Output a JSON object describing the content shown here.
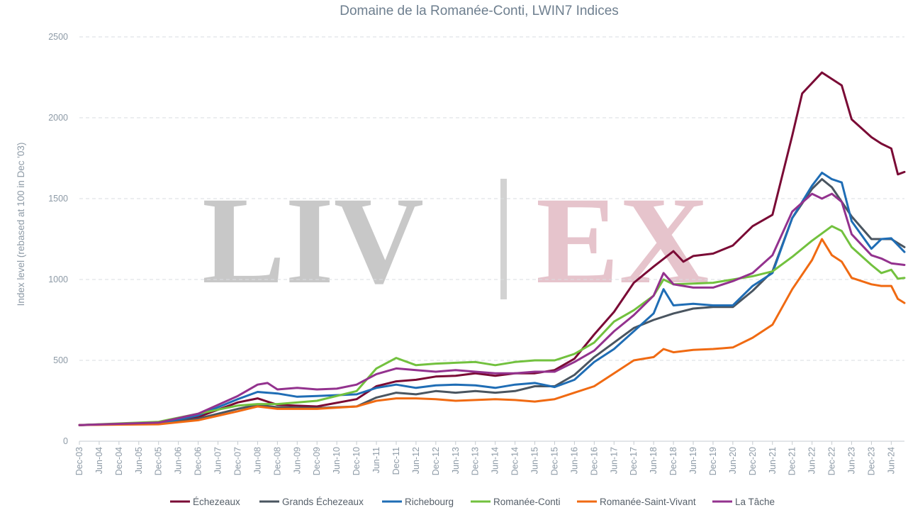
{
  "chart_data": {
    "type": "line",
    "title": "Domaine de la Romanée-Conti, LWIN7 Indices",
    "ylabel": "Index level (rebased at 100 in Dec '03)",
    "xlabel": "",
    "ylim": [
      0,
      2500
    ],
    "yticks": [
      0,
      500,
      1000,
      1500,
      2000,
      2500
    ],
    "x_range": [
      "Dec-03",
      "Oct-24"
    ],
    "x_tick_labels": [
      "Dec-03",
      "Jun-04",
      "Dec-04",
      "Jun-05",
      "Dec-05",
      "Jun-06",
      "Dec-06",
      "Jun-07",
      "Dec-07",
      "Jun-08",
      "Dec-08",
      "Jun-09",
      "Dec-09",
      "Jun-10",
      "Dec-10",
      "Jun-11",
      "Dec-11",
      "Jun-12",
      "Dec-12",
      "Jun-13",
      "Dec-13",
      "Jun-14",
      "Dec-14",
      "Jun-15",
      "Dec-15",
      "Jun-16",
      "Dec-16",
      "Jun-17",
      "Dec-17",
      "Jun-18",
      "Dec-18",
      "Jun-19",
      "Dec-19",
      "Jun-20",
      "Dec-20",
      "Jun-21",
      "Dec-21",
      "Jun-22",
      "Dec-22",
      "Jun-23",
      "Dec-23",
      "Jun-24"
    ],
    "grid": "horizontal dashed",
    "legend_position": "bottom",
    "watermark": {
      "left": "LIV",
      "right": "EX"
    },
    "series": [
      {
        "name": "Échezeaux",
        "color": "#7a0a35",
        "points": [
          [
            "Dec-03",
            100
          ],
          [
            "Dec-05",
            115
          ],
          [
            "Dec-06",
            150
          ],
          [
            "Dec-07",
            240
          ],
          [
            "Jun-08",
            265
          ],
          [
            "Dec-08",
            225
          ],
          [
            "Dec-09",
            215
          ],
          [
            "Dec-10",
            260
          ],
          [
            "Jun-11",
            340
          ],
          [
            "Dec-11",
            370
          ],
          [
            "Jun-12",
            380
          ],
          [
            "Dec-12",
            400
          ],
          [
            "Jun-13",
            405
          ],
          [
            "Dec-13",
            420
          ],
          [
            "Jun-14",
            405
          ],
          [
            "Dec-14",
            420
          ],
          [
            "Jun-15",
            420
          ],
          [
            "Dec-15",
            440
          ],
          [
            "Jun-16",
            510
          ],
          [
            "Dec-16",
            660
          ],
          [
            "Jun-17",
            800
          ],
          [
            "Dec-17",
            980
          ],
          [
            "Jun-18",
            1080
          ],
          [
            "Dec-18",
            1175
          ],
          [
            "Mar-19",
            1110
          ],
          [
            "Jun-19",
            1145
          ],
          [
            "Dec-19",
            1160
          ],
          [
            "Jun-20",
            1210
          ],
          [
            "Dec-20",
            1330
          ],
          [
            "Jun-21",
            1400
          ],
          [
            "Dec-21",
            1890
          ],
          [
            "Mar-22",
            2150
          ],
          [
            "Sep-22",
            2280
          ],
          [
            "Mar-23",
            2200
          ],
          [
            "Jun-23",
            1990
          ],
          [
            "Dec-23",
            1880
          ],
          [
            "Mar-24",
            1840
          ],
          [
            "Jun-24",
            1810
          ],
          [
            "Aug-24",
            1650
          ],
          [
            "Oct-24",
            1665
          ]
        ]
      },
      {
        "name": "Grands Échezeaux",
        "color": "#4a5560",
        "points": [
          [
            "Dec-03",
            100
          ],
          [
            "Dec-05",
            110
          ],
          [
            "Dec-06",
            140
          ],
          [
            "Dec-07",
            200
          ],
          [
            "Jun-08",
            225
          ],
          [
            "Dec-08",
            210
          ],
          [
            "Dec-09",
            205
          ],
          [
            "Dec-10",
            215
          ],
          [
            "Jun-11",
            270
          ],
          [
            "Dec-11",
            300
          ],
          [
            "Jun-12",
            290
          ],
          [
            "Dec-12",
            310
          ],
          [
            "Jun-13",
            300
          ],
          [
            "Dec-13",
            310
          ],
          [
            "Jun-14",
            300
          ],
          [
            "Dec-14",
            310
          ],
          [
            "Jun-15",
            340
          ],
          [
            "Dec-15",
            340
          ],
          [
            "Jun-16",
            410
          ],
          [
            "Dec-16",
            520
          ],
          [
            "Jun-17",
            610
          ],
          [
            "Dec-17",
            700
          ],
          [
            "Jun-18",
            750
          ],
          [
            "Dec-18",
            790
          ],
          [
            "Jun-19",
            820
          ],
          [
            "Dec-19",
            830
          ],
          [
            "Jun-20",
            830
          ],
          [
            "Dec-20",
            930
          ],
          [
            "Jun-21",
            1050
          ],
          [
            "Dec-21",
            1380
          ],
          [
            "Jun-22",
            1560
          ],
          [
            "Sep-22",
            1620
          ],
          [
            "Dec-22",
            1570
          ],
          [
            "Jun-23",
            1390
          ],
          [
            "Dec-23",
            1250
          ],
          [
            "Jun-24",
            1250
          ],
          [
            "Oct-24",
            1200
          ]
        ]
      },
      {
        "name": "Richebourg",
        "color": "#1f6db5",
        "points": [
          [
            "Dec-03",
            100
          ],
          [
            "Dec-05",
            110
          ],
          [
            "Dec-06",
            160
          ],
          [
            "Dec-07",
            260
          ],
          [
            "Jun-08",
            305
          ],
          [
            "Dec-08",
            295
          ],
          [
            "Jun-09",
            275
          ],
          [
            "Dec-09",
            280
          ],
          [
            "Dec-10",
            290
          ],
          [
            "Jun-11",
            330
          ],
          [
            "Dec-11",
            350
          ],
          [
            "Jun-12",
            330
          ],
          [
            "Dec-12",
            345
          ],
          [
            "Jun-13",
            350
          ],
          [
            "Dec-13",
            345
          ],
          [
            "Jun-14",
            330
          ],
          [
            "Dec-14",
            350
          ],
          [
            "Jun-15",
            360
          ],
          [
            "Dec-15",
            335
          ],
          [
            "Jun-16",
            380
          ],
          [
            "Dec-16",
            490
          ],
          [
            "Jun-17",
            570
          ],
          [
            "Dec-17",
            680
          ],
          [
            "Jun-18",
            790
          ],
          [
            "Sep-18",
            940
          ],
          [
            "Dec-18",
            840
          ],
          [
            "Jun-19",
            850
          ],
          [
            "Dec-19",
            840
          ],
          [
            "Jun-20",
            840
          ],
          [
            "Dec-20",
            960
          ],
          [
            "Jun-21",
            1040
          ],
          [
            "Dec-21",
            1380
          ],
          [
            "Jun-22",
            1580
          ],
          [
            "Sep-22",
            1660
          ],
          [
            "Dec-22",
            1620
          ],
          [
            "Mar-23",
            1600
          ],
          [
            "Jun-23",
            1360
          ],
          [
            "Dec-23",
            1190
          ],
          [
            "Mar-24",
            1250
          ],
          [
            "Jun-24",
            1255
          ],
          [
            "Oct-24",
            1170
          ]
        ]
      },
      {
        "name": "Romanée-Conti",
        "color": "#72c13e",
        "points": [
          [
            "Dec-03",
            100
          ],
          [
            "Dec-05",
            120
          ],
          [
            "Dec-06",
            170
          ],
          [
            "Dec-07",
            220
          ],
          [
            "Jun-08",
            230
          ],
          [
            "Dec-08",
            230
          ],
          [
            "Dec-09",
            250
          ],
          [
            "Dec-10",
            310
          ],
          [
            "Jun-11",
            450
          ],
          [
            "Dec-11",
            515
          ],
          [
            "Jun-12",
            470
          ],
          [
            "Dec-12",
            480
          ],
          [
            "Jun-13",
            485
          ],
          [
            "Dec-13",
            490
          ],
          [
            "Jun-14",
            470
          ],
          [
            "Dec-14",
            490
          ],
          [
            "Jun-15",
            500
          ],
          [
            "Dec-15",
            500
          ],
          [
            "Jun-16",
            540
          ],
          [
            "Dec-16",
            610
          ],
          [
            "Jun-17",
            740
          ],
          [
            "Dec-17",
            810
          ],
          [
            "Jun-18",
            900
          ],
          [
            "Sep-18",
            1000
          ],
          [
            "Dec-18",
            970
          ],
          [
            "Jun-19",
            975
          ],
          [
            "Dec-19",
            980
          ],
          [
            "Jun-20",
            1000
          ],
          [
            "Dec-20",
            1020
          ],
          [
            "Jun-21",
            1050
          ],
          [
            "Dec-21",
            1140
          ],
          [
            "Jun-22",
            1240
          ],
          [
            "Dec-22",
            1330
          ],
          [
            "Mar-23",
            1300
          ],
          [
            "Jun-23",
            1200
          ],
          [
            "Dec-23",
            1090
          ],
          [
            "Mar-24",
            1040
          ],
          [
            "Jun-24",
            1060
          ],
          [
            "Aug-24",
            1005
          ],
          [
            "Oct-24",
            1010
          ]
        ]
      },
      {
        "name": "Romanée-Saint-Vivant",
        "color": "#f06a12",
        "points": [
          [
            "Dec-03",
            100
          ],
          [
            "Dec-05",
            105
          ],
          [
            "Dec-06",
            130
          ],
          [
            "Dec-07",
            185
          ],
          [
            "Jun-08",
            215
          ],
          [
            "Dec-08",
            200
          ],
          [
            "Dec-09",
            200
          ],
          [
            "Dec-10",
            215
          ],
          [
            "Jun-11",
            250
          ],
          [
            "Dec-11",
            265
          ],
          [
            "Jun-12",
            265
          ],
          [
            "Dec-12",
            260
          ],
          [
            "Jun-13",
            250
          ],
          [
            "Dec-13",
            255
          ],
          [
            "Jun-14",
            260
          ],
          [
            "Dec-14",
            255
          ],
          [
            "Jun-15",
            245
          ],
          [
            "Dec-15",
            260
          ],
          [
            "Jun-16",
            300
          ],
          [
            "Dec-16",
            340
          ],
          [
            "Jun-17",
            420
          ],
          [
            "Dec-17",
            500
          ],
          [
            "Jun-18",
            520
          ],
          [
            "Sep-18",
            570
          ],
          [
            "Dec-18",
            550
          ],
          [
            "Jun-19",
            565
          ],
          [
            "Dec-19",
            570
          ],
          [
            "Jun-20",
            580
          ],
          [
            "Dec-20",
            640
          ],
          [
            "Jun-21",
            720
          ],
          [
            "Dec-21",
            940
          ],
          [
            "Jun-22",
            1120
          ],
          [
            "Sep-22",
            1250
          ],
          [
            "Dec-22",
            1150
          ],
          [
            "Mar-23",
            1110
          ],
          [
            "Jun-23",
            1010
          ],
          [
            "Dec-23",
            970
          ],
          [
            "Mar-24",
            960
          ],
          [
            "Jun-24",
            960
          ],
          [
            "Aug-24",
            880
          ],
          [
            "Oct-24",
            855
          ]
        ]
      },
      {
        "name": "La Tâche",
        "color": "#93328e",
        "points": [
          [
            "Dec-03",
            100
          ],
          [
            "Dec-05",
            115
          ],
          [
            "Dec-06",
            170
          ],
          [
            "Dec-07",
            280
          ],
          [
            "Jun-08",
            350
          ],
          [
            "Sep-08",
            360
          ],
          [
            "Dec-08",
            320
          ],
          [
            "Jun-09",
            330
          ],
          [
            "Dec-09",
            320
          ],
          [
            "Jun-10",
            325
          ],
          [
            "Dec-10",
            350
          ],
          [
            "Jun-11",
            415
          ],
          [
            "Dec-11",
            450
          ],
          [
            "Jun-12",
            440
          ],
          [
            "Dec-12",
            430
          ],
          [
            "Jun-13",
            440
          ],
          [
            "Dec-13",
            430
          ],
          [
            "Jun-14",
            420
          ],
          [
            "Dec-14",
            420
          ],
          [
            "Jun-15",
            430
          ],
          [
            "Dec-15",
            430
          ],
          [
            "Jun-16",
            490
          ],
          [
            "Dec-16",
            560
          ],
          [
            "Jun-17",
            680
          ],
          [
            "Dec-17",
            780
          ],
          [
            "Jun-18",
            900
          ],
          [
            "Sep-18",
            1040
          ],
          [
            "Dec-18",
            970
          ],
          [
            "Jun-19",
            950
          ],
          [
            "Dec-19",
            950
          ],
          [
            "Jun-20",
            990
          ],
          [
            "Dec-20",
            1040
          ],
          [
            "Jun-21",
            1150
          ],
          [
            "Dec-21",
            1420
          ],
          [
            "Jun-22",
            1530
          ],
          [
            "Sep-22",
            1500
          ],
          [
            "Dec-22",
            1530
          ],
          [
            "Mar-23",
            1480
          ],
          [
            "Jun-23",
            1280
          ],
          [
            "Dec-23",
            1150
          ],
          [
            "Mar-24",
            1130
          ],
          [
            "Jun-24",
            1100
          ],
          [
            "Oct-24",
            1090
          ]
        ]
      }
    ]
  }
}
